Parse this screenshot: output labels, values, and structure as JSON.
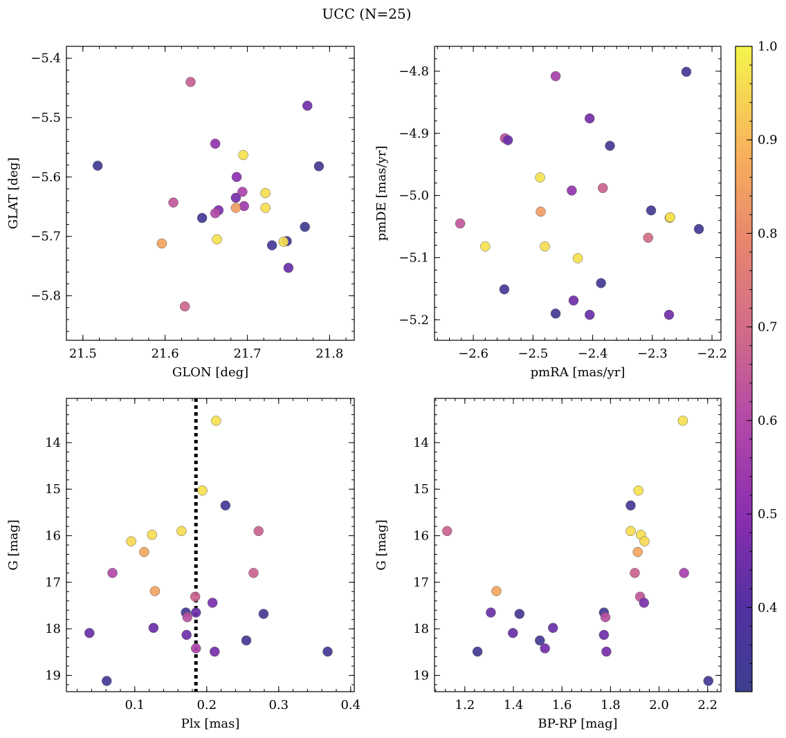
{
  "figure": {
    "title": "UCC (N=25)"
  },
  "colorbar": {
    "colormap": "plasma",
    "range": [
      0.31,
      1.0
    ],
    "ticks": [
      0.4,
      0.5,
      0.6,
      0.7,
      0.8,
      0.9,
      1.0
    ],
    "tick_labels": [
      "0.4",
      "0.5",
      "0.6",
      "0.7",
      "0.8",
      "0.9",
      "1.0"
    ]
  },
  "vline": {
    "panel": 2,
    "x": 0.185,
    "style": "dotted",
    "color": "#000000"
  },
  "chart_data": [
    {
      "type": "scatter",
      "xlabel": "GLON [deg]",
      "ylabel": "GLAT [deg]",
      "xlim": [
        21.48,
        21.83
      ],
      "ylim": [
        -5.875,
        -5.38
      ],
      "y_inverted": false,
      "xticks": [
        21.5,
        21.6,
        21.7,
        21.8
      ],
      "xtick_labels": [
        "21.5",
        "21.6",
        "21.7",
        "21.8"
      ],
      "yticks": [
        -5.4,
        -5.5,
        -5.6,
        -5.7,
        -5.8
      ],
      "ytick_labels": [
        "−5.4",
        "−5.5",
        "−5.6",
        "−5.7",
        "−5.8"
      ],
      "points": [
        {
          "x": 21.518,
          "y": -5.581,
          "c": 0.33
        },
        {
          "x": 21.631,
          "y": -5.44,
          "c": 0.66
        },
        {
          "x": 21.773,
          "y": -5.48,
          "c": 0.45
        },
        {
          "x": 21.661,
          "y": -5.544,
          "c": 0.52
        },
        {
          "x": 21.695,
          "y": -5.563,
          "c": 0.97
        },
        {
          "x": 21.787,
          "y": -5.582,
          "c": 0.34
        },
        {
          "x": 21.687,
          "y": -5.6,
          "c": 0.5
        },
        {
          "x": 21.694,
          "y": -5.625,
          "c": 0.58
        },
        {
          "x": 21.722,
          "y": -5.627,
          "c": 0.96
        },
        {
          "x": 21.686,
          "y": -5.635,
          "c": 0.46
        },
        {
          "x": 21.61,
          "y": -5.643,
          "c": 0.64
        },
        {
          "x": 21.696,
          "y": -5.649,
          "c": 0.55
        },
        {
          "x": 21.686,
          "y": -5.652,
          "c": 0.84
        },
        {
          "x": 21.722,
          "y": -5.652,
          "c": 0.96
        },
        {
          "x": 21.665,
          "y": -5.656,
          "c": 0.48
        },
        {
          "x": 21.661,
          "y": -5.661,
          "c": 0.6
        },
        {
          "x": 21.645,
          "y": -5.669,
          "c": 0.34
        },
        {
          "x": 21.77,
          "y": -5.684,
          "c": 0.33
        },
        {
          "x": 21.663,
          "y": -5.705,
          "c": 0.97
        },
        {
          "x": 21.596,
          "y": -5.712,
          "c": 0.86
        },
        {
          "x": 21.748,
          "y": -5.708,
          "c": 0.34
        },
        {
          "x": 21.744,
          "y": -5.709,
          "c": 0.96
        },
        {
          "x": 21.73,
          "y": -5.715,
          "c": 0.35
        },
        {
          "x": 21.75,
          "y": -5.753,
          "c": 0.44
        },
        {
          "x": 21.624,
          "y": -5.818,
          "c": 0.68
        }
      ]
    },
    {
      "type": "scatter",
      "xlabel": "pmRA [mas/yr]",
      "ylabel": "pmDE [mas/yr]",
      "xlim": [
        -2.665,
        -2.185
      ],
      "ylim": [
        -5.233,
        -4.76
      ],
      "y_inverted": false,
      "xticks": [
        -2.6,
        -2.5,
        -2.4,
        -2.3,
        -2.2
      ],
      "xtick_labels": [
        "−2.6",
        "−2.5",
        "−2.4",
        "−2.3",
        "−2.2"
      ],
      "yticks": [
        -4.8,
        -4.9,
        -5.0,
        -5.1,
        -5.2
      ],
      "ytick_labels": [
        "−4.8",
        "−4.9",
        "−5.0",
        "−5.1",
        "−5.2"
      ],
      "points": [
        {
          "x": -2.243,
          "y": -4.801,
          "c": 0.34
        },
        {
          "x": -2.462,
          "y": -4.808,
          "c": 0.57
        },
        {
          "x": -2.405,
          "y": -4.876,
          "c": 0.46
        },
        {
          "x": -2.547,
          "y": -4.908,
          "c": 0.62
        },
        {
          "x": -2.542,
          "y": -4.911,
          "c": 0.44
        },
        {
          "x": -2.371,
          "y": -4.92,
          "c": 0.35
        },
        {
          "x": -2.488,
          "y": -4.971,
          "c": 0.97
        },
        {
          "x": -2.383,
          "y": -4.988,
          "c": 0.67
        },
        {
          "x": -2.435,
          "y": -4.992,
          "c": 0.52
        },
        {
          "x": -2.302,
          "y": -5.024,
          "c": 0.34
        },
        {
          "x": -2.487,
          "y": -5.026,
          "c": 0.84
        },
        {
          "x": -2.271,
          "y": -5.036,
          "c": 0.93
        },
        {
          "x": -2.27,
          "y": -5.035,
          "c": 0.97
        },
        {
          "x": -2.622,
          "y": -5.045,
          "c": 0.64
        },
        {
          "x": -2.222,
          "y": -5.054,
          "c": 0.34
        },
        {
          "x": -2.307,
          "y": -5.068,
          "c": 0.7
        },
        {
          "x": -2.58,
          "y": -5.082,
          "c": 0.97
        },
        {
          "x": -2.48,
          "y": -5.082,
          "c": 0.96
        },
        {
          "x": -2.425,
          "y": -5.101,
          "c": 0.97
        },
        {
          "x": -2.386,
          "y": -5.141,
          "c": 0.34
        },
        {
          "x": -2.548,
          "y": -5.151,
          "c": 0.35
        },
        {
          "x": -2.432,
          "y": -5.169,
          "c": 0.45
        },
        {
          "x": -2.462,
          "y": -5.19,
          "c": 0.34
        },
        {
          "x": -2.405,
          "y": -5.192,
          "c": 0.44
        },
        {
          "x": -2.272,
          "y": -5.192,
          "c": 0.45
        }
      ]
    },
    {
      "type": "scatter",
      "xlabel": "Plx [mas]",
      "ylabel": "G [mag]",
      "xlim": [
        0.005,
        0.405
      ],
      "ylim": [
        19.35,
        13.05
      ],
      "y_inverted": true,
      "xticks": [
        0.1,
        0.2,
        0.3,
        0.4
      ],
      "xtick_labels": [
        "0.1",
        "0.2",
        "0.3",
        "0.4"
      ],
      "yticks": [
        14,
        15,
        16,
        17,
        18,
        19
      ],
      "ytick_labels": [
        "14",
        "15",
        "16",
        "17",
        "18",
        "19"
      ],
      "points": [
        {
          "x": 0.213,
          "y": 13.53,
          "c": 0.97
        },
        {
          "x": 0.194,
          "y": 15.03,
          "c": 0.97
        },
        {
          "x": 0.226,
          "y": 15.35,
          "c": 0.34
        },
        {
          "x": 0.165,
          "y": 15.9,
          "c": 0.96
        },
        {
          "x": 0.272,
          "y": 15.9,
          "c": 0.67
        },
        {
          "x": 0.124,
          "y": 15.98,
          "c": 0.96
        },
        {
          "x": 0.095,
          "y": 16.12,
          "c": 0.95
        },
        {
          "x": 0.113,
          "y": 16.35,
          "c": 0.86
        },
        {
          "x": 0.069,
          "y": 16.8,
          "c": 0.6
        },
        {
          "x": 0.265,
          "y": 16.8,
          "c": 0.67
        },
        {
          "x": 0.128,
          "y": 17.19,
          "c": 0.86
        },
        {
          "x": 0.184,
          "y": 17.31,
          "c": 0.67
        },
        {
          "x": 0.208,
          "y": 17.44,
          "c": 0.47
        },
        {
          "x": 0.171,
          "y": 17.65,
          "c": 0.34
        },
        {
          "x": 0.185,
          "y": 17.65,
          "c": 0.44
        },
        {
          "x": 0.279,
          "y": 17.68,
          "c": 0.34
        },
        {
          "x": 0.173,
          "y": 17.75,
          "c": 0.62
        },
        {
          "x": 0.126,
          "y": 17.98,
          "c": 0.44
        },
        {
          "x": 0.037,
          "y": 18.09,
          "c": 0.44
        },
        {
          "x": 0.172,
          "y": 18.13,
          "c": 0.45
        },
        {
          "x": 0.255,
          "y": 18.25,
          "c": 0.34
        },
        {
          "x": 0.185,
          "y": 18.42,
          "c": 0.58
        },
        {
          "x": 0.211,
          "y": 18.49,
          "c": 0.46
        },
        {
          "x": 0.368,
          "y": 18.49,
          "c": 0.34
        },
        {
          "x": 0.061,
          "y": 19.12,
          "c": 0.34
        }
      ]
    },
    {
      "type": "scatter",
      "xlabel": "BP-RP [mag]",
      "ylabel": "G [mag]",
      "xlim": [
        1.075,
        2.255
      ],
      "ylim": [
        19.35,
        13.05
      ],
      "y_inverted": true,
      "xticks": [
        1.2,
        1.4,
        1.6,
        1.8,
        2.0,
        2.2
      ],
      "xtick_labels": [
        "1.2",
        "1.4",
        "1.6",
        "1.8",
        "2.0",
        "2.2"
      ],
      "yticks": [
        14,
        15,
        16,
        17,
        18,
        19
      ],
      "ytick_labels": [
        "14",
        "15",
        "16",
        "17",
        "18",
        "19"
      ],
      "points": [
        {
          "x": 2.098,
          "y": 13.53,
          "c": 0.97
        },
        {
          "x": 1.915,
          "y": 15.03,
          "c": 0.97
        },
        {
          "x": 1.883,
          "y": 15.35,
          "c": 0.34
        },
        {
          "x": 1.883,
          "y": 15.9,
          "c": 0.96
        },
        {
          "x": 1.127,
          "y": 15.9,
          "c": 0.67
        },
        {
          "x": 1.925,
          "y": 15.98,
          "c": 0.96
        },
        {
          "x": 1.94,
          "y": 16.12,
          "c": 0.95
        },
        {
          "x": 1.912,
          "y": 16.35,
          "c": 0.86
        },
        {
          "x": 1.9,
          "y": 16.8,
          "c": 0.67
        },
        {
          "x": 2.103,
          "y": 16.8,
          "c": 0.57
        },
        {
          "x": 1.33,
          "y": 17.19,
          "c": 0.86
        },
        {
          "x": 1.922,
          "y": 17.31,
          "c": 0.64
        },
        {
          "x": 1.938,
          "y": 17.44,
          "c": 0.47
        },
        {
          "x": 1.307,
          "y": 17.65,
          "c": 0.44
        },
        {
          "x": 1.773,
          "y": 17.65,
          "c": 0.34
        },
        {
          "x": 1.425,
          "y": 17.68,
          "c": 0.34
        },
        {
          "x": 1.779,
          "y": 17.75,
          "c": 0.62
        },
        {
          "x": 1.563,
          "y": 17.98,
          "c": 0.44
        },
        {
          "x": 1.398,
          "y": 18.09,
          "c": 0.44
        },
        {
          "x": 1.773,
          "y": 18.13,
          "c": 0.45
        },
        {
          "x": 1.509,
          "y": 18.25,
          "c": 0.34
        },
        {
          "x": 1.53,
          "y": 18.42,
          "c": 0.46
        },
        {
          "x": 1.783,
          "y": 18.49,
          "c": 0.46
        },
        {
          "x": 1.252,
          "y": 18.49,
          "c": 0.34
        },
        {
          "x": 2.203,
          "y": 19.12,
          "c": 0.34
        }
      ]
    }
  ]
}
